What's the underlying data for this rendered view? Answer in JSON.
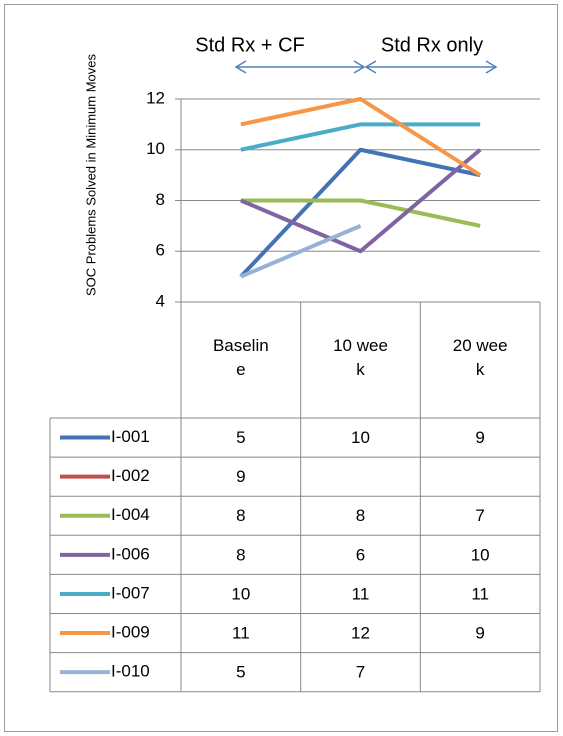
{
  "chart_data": {
    "type": "line",
    "y_axis_label": "SOC Problems Solved in Minimum Moves",
    "annotations": [
      "Std Rx + CF",
      "Std Rx only"
    ],
    "categories": [
      "Baseline",
      "10 week",
      "20 week"
    ],
    "ylim": [
      4,
      12
    ],
    "yticks": [
      4,
      6,
      8,
      10,
      12
    ],
    "grid": true,
    "series": [
      {
        "name": "I-001",
        "color": "#4472b4",
        "values": [
          5,
          10,
          9
        ]
      },
      {
        "name": "I-002",
        "color": "#c0504d",
        "values": [
          9,
          null,
          null
        ]
      },
      {
        "name": "I-004",
        "color": "#9bbb59",
        "values": [
          8,
          8,
          7
        ]
      },
      {
        "name": "I-006",
        "color": "#8064a2",
        "values": [
          8,
          6,
          10
        ]
      },
      {
        "name": "I-007",
        "color": "#4bacc6",
        "values": [
          10,
          11,
          11
        ]
      },
      {
        "name": "I-009",
        "color": "#f79646",
        "values": [
          11,
          12,
          9
        ]
      },
      {
        "name": "I-010",
        "color": "#95b3d7",
        "values": [
          5,
          7,
          null
        ]
      }
    ]
  }
}
